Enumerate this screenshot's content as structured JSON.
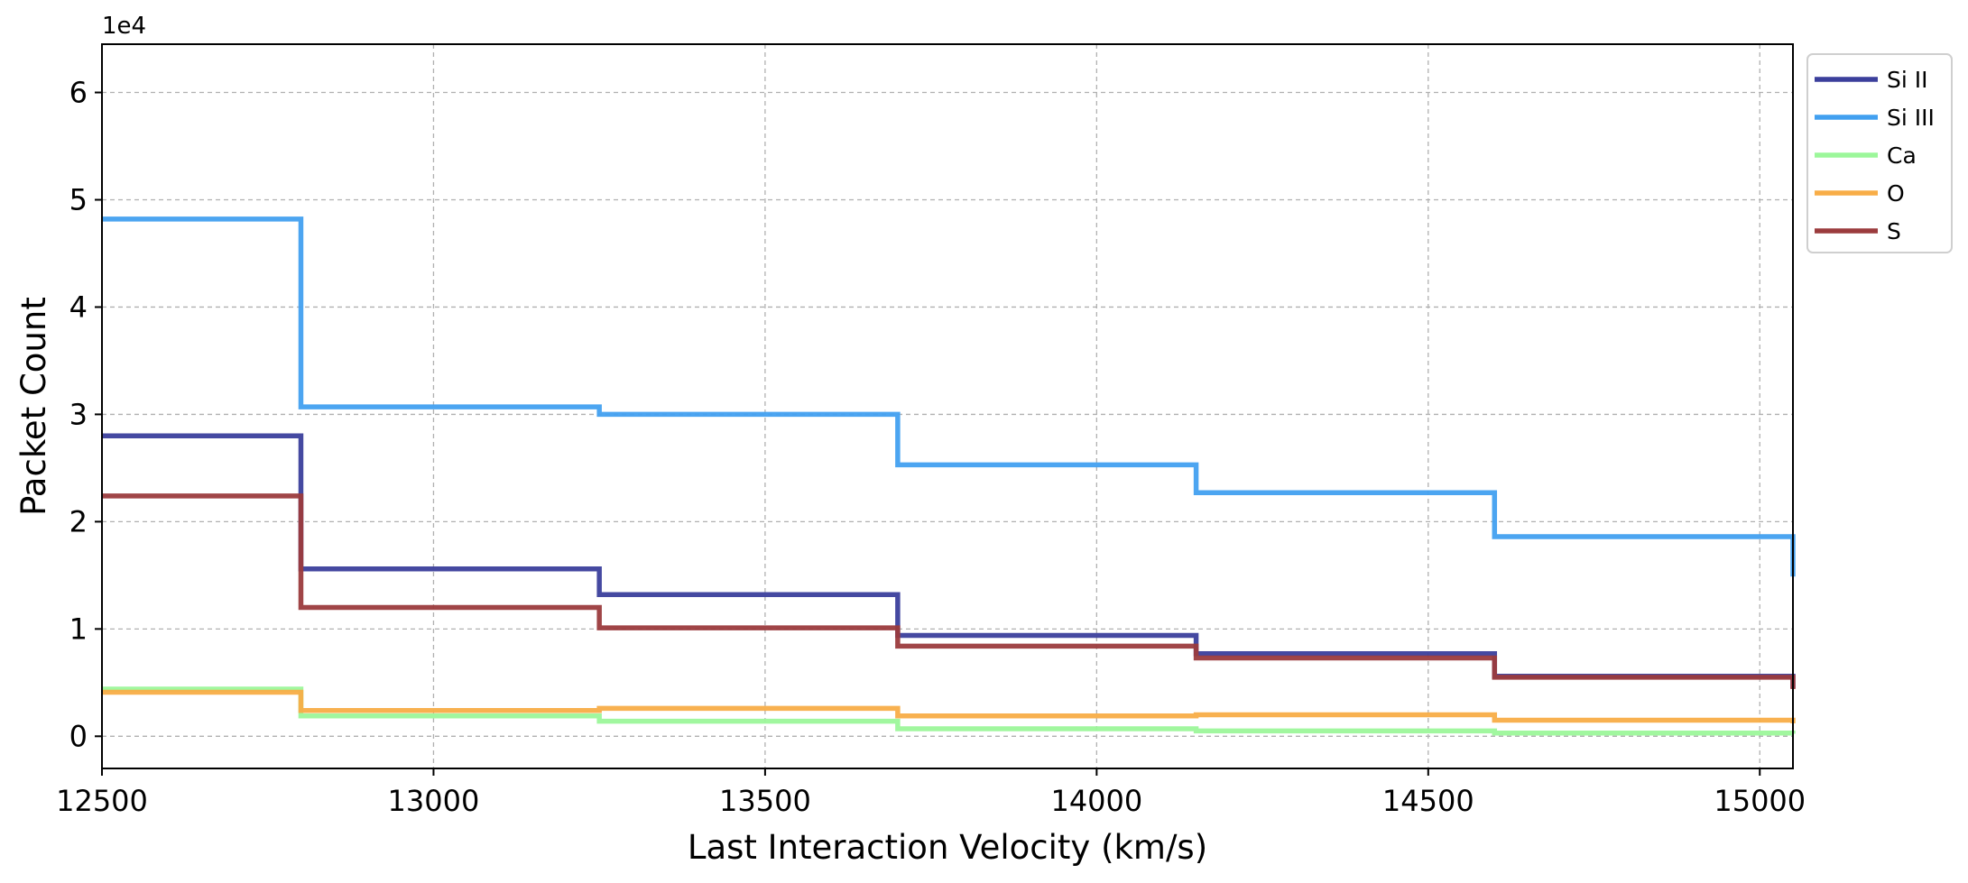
{
  "chart_data": {
    "type": "line",
    "step": "post",
    "xlabel": "Last Interaction Velocity (km/s)",
    "ylabel": "Packet Count",
    "y_offset_label": "1e4",
    "xlim": [
      12500,
      15050
    ],
    "ylim": [
      -3000,
      64500
    ],
    "x_ticks": [
      12500,
      13000,
      13500,
      14000,
      14500,
      15000
    ],
    "y_ticks": [
      0,
      10000,
      20000,
      30000,
      40000,
      50000,
      60000
    ],
    "y_tick_labels": [
      "0",
      "1",
      "2",
      "3",
      "4",
      "5",
      "6"
    ],
    "grid": true,
    "legend_position": "upper-right-outside",
    "bin_edges": [
      12500,
      12800,
      13250,
      13700,
      14150,
      14600,
      15050
    ],
    "series": [
      {
        "name": "Si II",
        "color": "#3b3f9c",
        "values": [
          28000,
          15600,
          13200,
          9400,
          7700,
          5600
        ]
      },
      {
        "name": "Si III",
        "color": "#42a0f0",
        "values": [
          48200,
          30700,
          30000,
          25300,
          22700,
          18600
        ]
      },
      {
        "name": "Ca",
        "color": "#9cf79a",
        "values": [
          4400,
          1900,
          1400,
          700,
          500,
          300
        ]
      },
      {
        "name": "O",
        "color": "#f8ad47",
        "values": [
          4100,
          2400,
          2600,
          1900,
          2000,
          1500
        ]
      },
      {
        "name": "S",
        "color": "#9b3b3d",
        "values": [
          22400,
          12000,
          10100,
          8400,
          7300,
          5500
        ]
      }
    ]
  }
}
